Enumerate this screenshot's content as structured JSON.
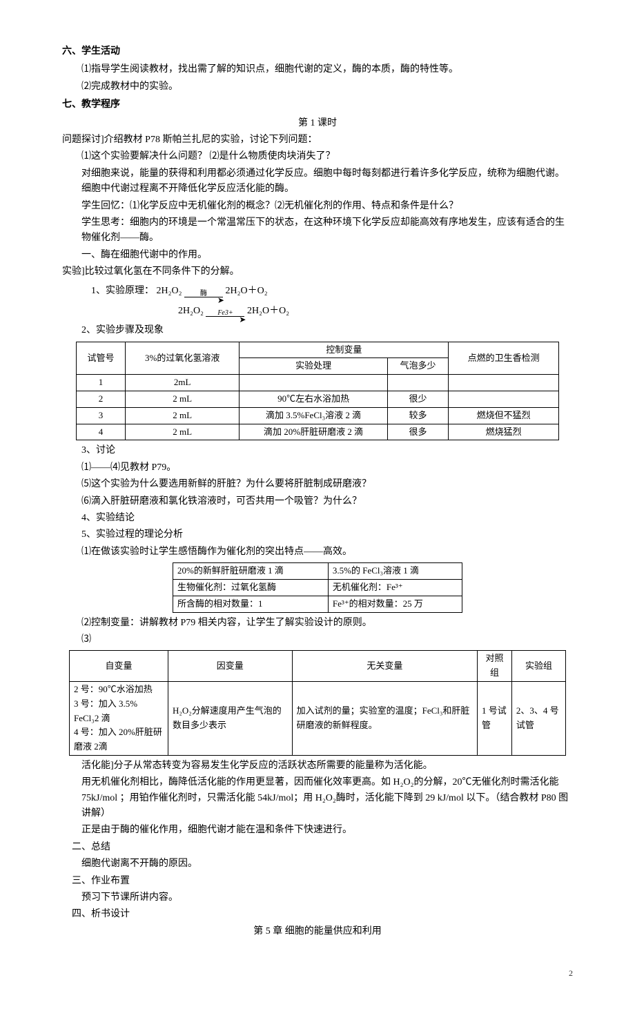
{
  "sec6": {
    "heading": "六、学生活动",
    "p1": "⑴指导学生阅读教材，找出需了解的知识点，细胞代谢的定义，酶的本质，酶的特性等。",
    "p2": "⑵完成教材中的实验。"
  },
  "sec7": {
    "heading": "七、教学程序",
    "lesson_title": "第 1 课时",
    "intro": "问题探讨]介绍教材 P78 斯帕兰扎尼的实验，讨论下列问题：",
    "q1": "⑴这个实验要解决什么问题？    ⑵是什么物质使肉块消失了？",
    "p3": "对细胞来说，能量的获得和利用都必须通过化学反应。细胞中每时每刻都进行着许多化学反应，统称为细胞代谢。细胞中代谢过程离不开降低化学反应活化能的酶。",
    "p4": "学生回忆：⑴化学反应中无机催化剂的概念？⑵无机催化剂的作用、特点和条件是什么？",
    "p5": "学生思考：细胞内的环境是一个常温常压下的状态，在这种环境下化学反应却能高效有序地发生，应该有适合的生物催化剂——酶。",
    "sub1": "一、酶在细胞代谢中的作用。",
    "exp_title": "实验]比较过氧化氢在不同条件下的分解。",
    "formula_label": "1、实验原理：",
    "f1_left": "2H₂O₂",
    "f1_cat": "酶",
    "f1_right": "2H₂O＋O₂",
    "f2_left": "2H₂O₂",
    "f2_cat": "Fe3+",
    "f2_right": "2H₂O＋O₂",
    "step_label": "2、实验步骤及现象"
  },
  "table1": {
    "h_tube": "试管号",
    "h_h2o2": "3%的过氧化氢溶液",
    "h_ctrl": "控制变量",
    "h_candle": "点燃的卫生香检测",
    "h_treat": "实验处理",
    "h_bubble": "气泡多少",
    "rows": [
      {
        "n": "1",
        "sol": "2mL",
        "treat": "",
        "bubble": "",
        "candle": ""
      },
      {
        "n": "2",
        "sol": "2 mL",
        "treat": "90℃左右水浴加热",
        "bubble": "很少",
        "candle": ""
      },
      {
        "n": "3",
        "sol": "2 mL",
        "treat": "滴加 3.5%FeCl₃溶液 2 滴",
        "bubble": "较多",
        "candle": "燃烧但不猛烈"
      },
      {
        "n": "4",
        "sol": "2 mL",
        "treat": "滴加 20%肝脏研磨液 2 滴",
        "bubble": "很多",
        "candle": "燃烧猛烈"
      }
    ]
  },
  "discuss": {
    "h": "3、讨论",
    "p1": "⑴——⑷见教材 P79。",
    "p2": "⑸这个实验为什么要选用新鲜的肝脏？为什么要将肝脏制成研磨液？",
    "p3": "⑹滴入肝脏研磨液和氯化铁溶液时，可否共用一个吸管？为什么？",
    "p4": "4、实验结论",
    "p5": "5、实验过程的理论分析",
    "p6": "⑴在做该实验时让学生感悟酶作为催化剂的突出特点——高效。"
  },
  "table2": {
    "r1c1": "20%的新鲜肝脏研磨液 1 滴",
    "r1c2": "3.5%的 FeCl₃溶液 1 滴",
    "r2c1": "生物催化剂：过氧化氢酶",
    "r2c2": "无机催化剂：Fe³⁺",
    "r3c1": "所含酶的相对数量：1",
    "r3c2": "Fe³⁺的相对数量：25 万"
  },
  "ctrl": {
    "p1": "⑵控制变量：讲解教材 P79 相关内容，让学生了解实验设计的原则。",
    "p2": "⑶"
  },
  "table3": {
    "h1": "自变量",
    "h2": "因变量",
    "h3": "无关变量",
    "h4": "对照组",
    "h5": "实验组",
    "c1": "2 号：90℃水浴加热\n3 号：加入 3.5% FeCl₃2 滴\n4 号：加入 20%肝脏研磨液 2滴",
    "c2": "H₂O₂分解速度用产生气泡的数目多少表示",
    "c3": "加入试剂的量；实验室的温度；FeCl₃和肝脏研磨液的新鲜程度。",
    "c4": "1 号试管",
    "c5": "2、3、4 号试管"
  },
  "act": {
    "p1": "活化能]分子从常态转变为容易发生化学反应的活跃状态所需要的能量称为活化能。",
    "p2": "用无机催化剂相比，酶降低活化能的作用更显著，因而催化效率更高。如 H₂O₂的分解，20℃无催化剂时需活化能 75kJ/mol ；用铂作催化剂时，只需活化能 54kJ/mol；用 H₂O₂酶时，活化能下降到 29 kJ/mol 以下。（结合教材 P80 图讲解）",
    "p3": "正是由于酶的催化作用，细胞代谢才能在温和条件下快速进行。"
  },
  "sum": {
    "h2": "二、总结",
    "p1": "细胞代谢离不开酶的原因。",
    "h3": "三、作业布置",
    "p2": "预习下节课所讲内容。",
    "h4": "四、析书设计",
    "chapter": "第 5 章   细胞的能量供应和利用"
  },
  "page": "2"
}
